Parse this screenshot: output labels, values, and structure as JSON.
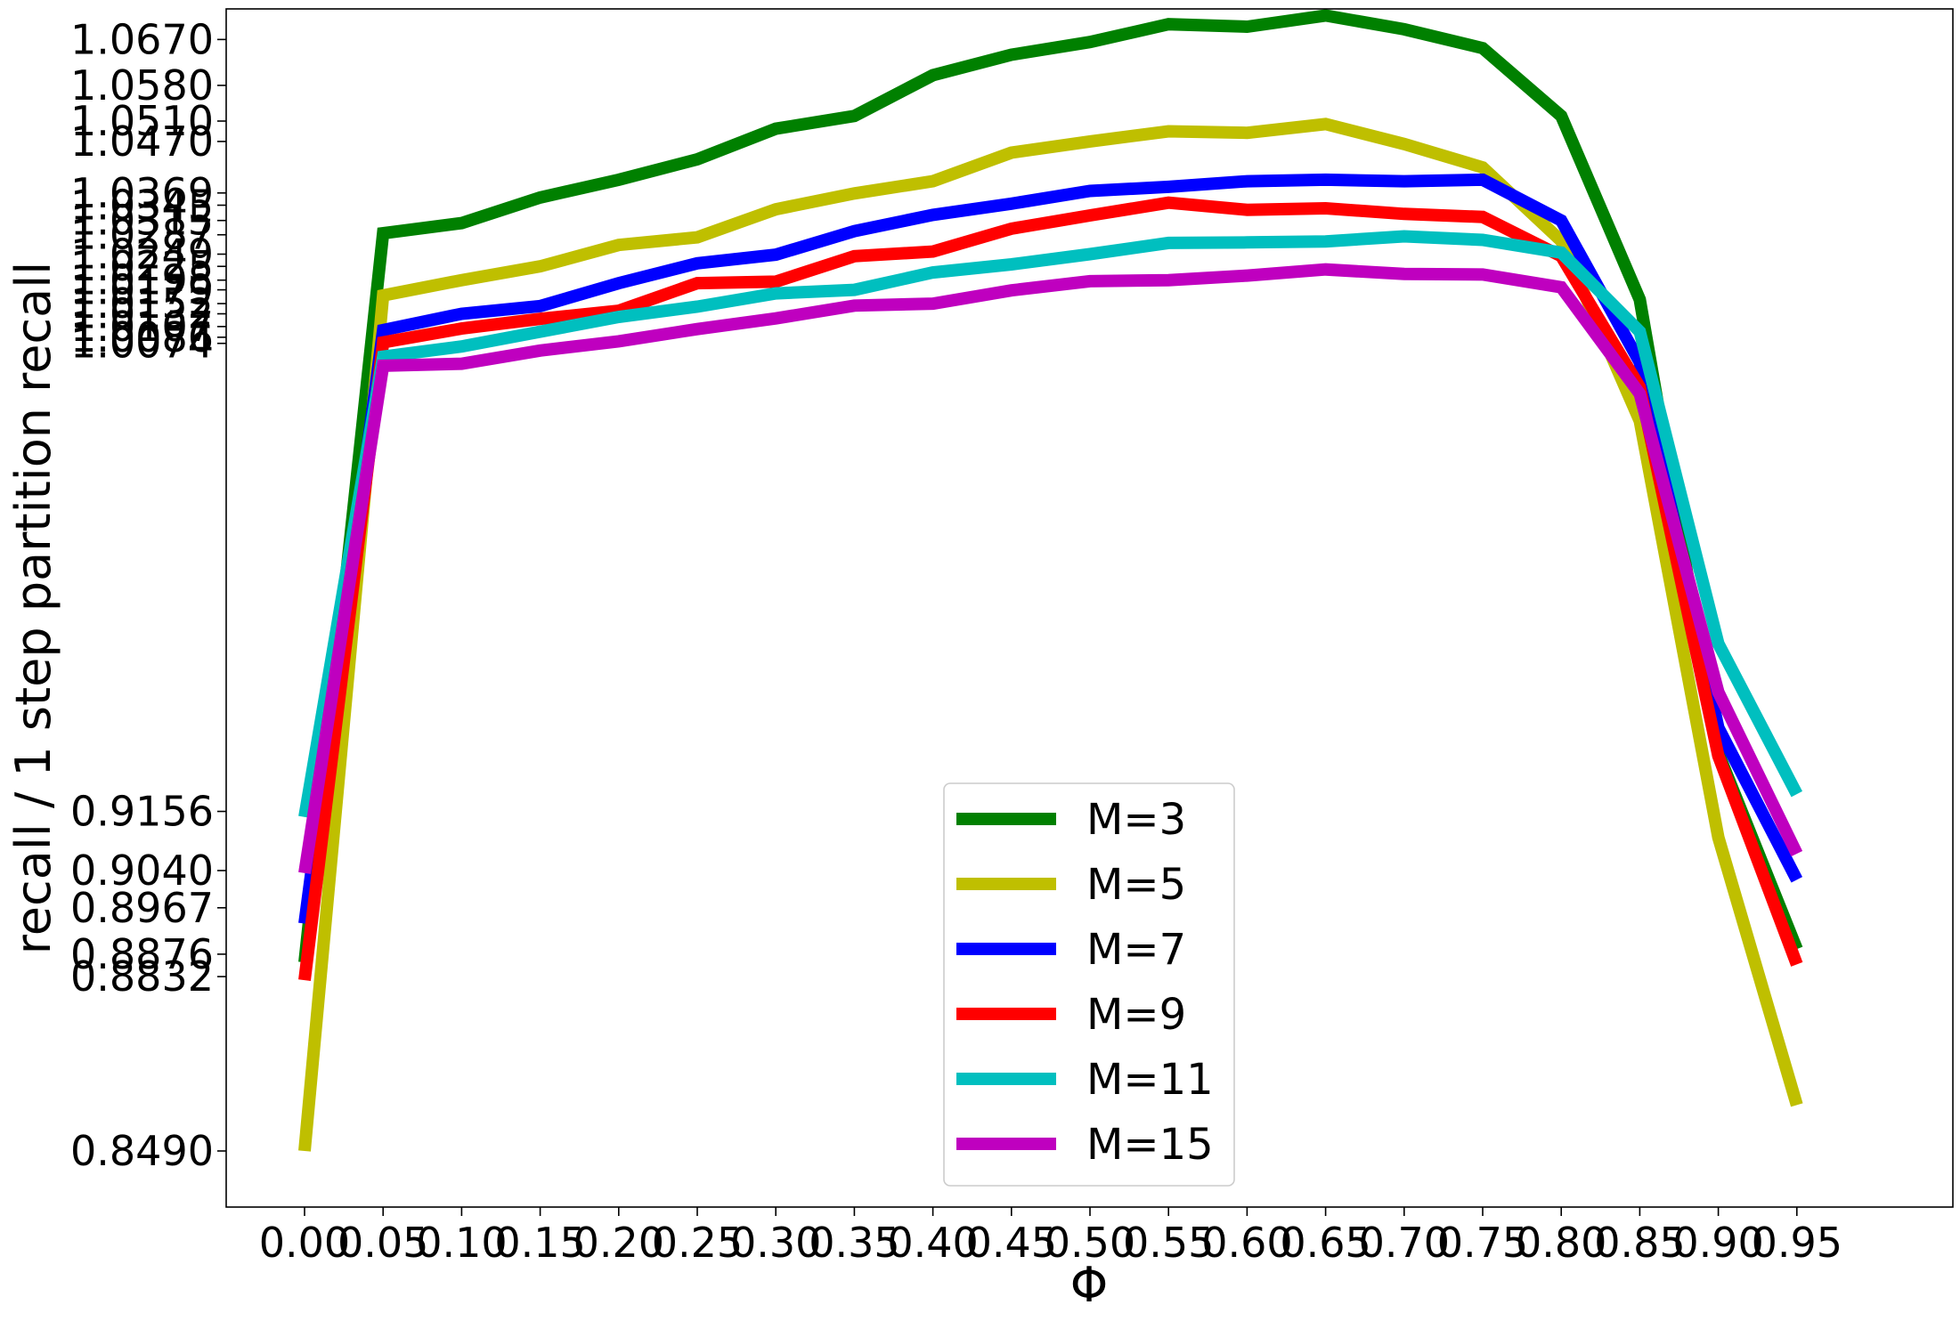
{
  "chart_data": {
    "type": "line",
    "title": "",
    "xlabel": "Φ",
    "ylabel": "recall / 1 step partition recall",
    "x": [
      0.0,
      0.05,
      0.1,
      0.15,
      0.2,
      0.25,
      0.3,
      0.35,
      0.4,
      0.45,
      0.5,
      0.55,
      0.6,
      0.65,
      0.7,
      0.75,
      0.8,
      0.85,
      0.9,
      0.95
    ],
    "x_tick_labels": [
      "0.00",
      "0.05",
      "0.10",
      "0.15",
      "0.20",
      "0.25",
      "0.30",
      "0.35",
      "0.40",
      "0.45",
      "0.50",
      "0.55",
      "0.60",
      "0.65",
      "0.70",
      "0.75",
      "0.80",
      "0.85",
      "0.90",
      "0.95"
    ],
    "ylim": [
      0.838,
      1.073
    ],
    "y_ticks": [
      0.849,
      0.8832,
      0.8876,
      0.8967,
      0.904,
      0.9156,
      1.0074,
      1.0086,
      1.0107,
      1.0132,
      1.0152,
      1.0179,
      1.0198,
      1.0225,
      1.0249,
      1.0287,
      1.0315,
      1.0345,
      1.0369,
      1.047,
      1.051,
      1.058,
      1.067
    ],
    "y_tick_labels": [
      "0.8490",
      "0.8832",
      "0.8876",
      "0.8967",
      "0.9040",
      "0.9156",
      "1.0074",
      "1.0086",
      "1.0107",
      "1.0132",
      "1.0152",
      "1.0179",
      "1.0198",
      "1.0225",
      "1.0249",
      "1.0287",
      "1.0315",
      "1.0345",
      "1.0369",
      "1.0470",
      "1.0510",
      "1.0580",
      "1.0670"
    ],
    "grid": false,
    "legend_position": "bottom-center",
    "series": [
      {
        "name": "M=3",
        "color": "#008000",
        "values": [
          0.886,
          1.029,
          1.031,
          1.036,
          1.0395,
          1.0435,
          1.0495,
          1.052,
          1.06,
          1.064,
          1.0665,
          1.07,
          1.0695,
          1.0717,
          1.069,
          1.0653,
          1.052,
          1.016,
          0.927,
          0.8886
        ]
      },
      {
        "name": "M=5",
        "color": "#bfbf00",
        "values": [
          0.849,
          1.0168,
          1.0198,
          1.0225,
          1.0267,
          1.0282,
          1.0337,
          1.0368,
          1.0392,
          1.0448,
          1.047,
          1.049,
          1.0487,
          1.0504,
          1.0465,
          1.0419,
          1.0275,
          0.9922,
          0.9105,
          0.858
        ]
      },
      {
        "name": "M=7",
        "color": "#0000ff",
        "values": [
          0.8936,
          1.01,
          1.0132,
          1.0147,
          1.0192,
          1.0231,
          1.0248,
          1.0294,
          1.0326,
          1.0348,
          1.0373,
          1.0381,
          1.0392,
          1.0395,
          1.0392,
          1.0395,
          1.0315,
          1.0037,
          0.932,
          0.9022
        ]
      },
      {
        "name": "M=9",
        "color": "#ff0000",
        "values": [
          0.8825,
          1.0076,
          1.0103,
          1.0122,
          1.0138,
          1.0192,
          1.0195,
          1.0245,
          1.0254,
          1.0299,
          1.0325,
          1.035,
          1.0336,
          1.0339,
          1.0328,
          1.0322,
          1.0245,
          0.9988,
          0.9265,
          0.8856
        ]
      },
      {
        "name": "M=11",
        "color": "#00bfbf",
        "values": [
          0.9145,
          1.0048,
          1.0068,
          1.0097,
          1.0126,
          1.0146,
          1.0172,
          1.0179,
          1.0213,
          1.0229,
          1.0249,
          1.0271,
          1.0272,
          1.0274,
          1.0284,
          1.0277,
          1.0252,
          1.0097,
          0.9485,
          0.919
        ]
      },
      {
        "name": "M=15",
        "color": "#bf00bf",
        "values": [
          0.9035,
          1.003,
          1.0034,
          1.006,
          1.0078,
          1.0102,
          1.0123,
          1.0148,
          1.0152,
          1.0178,
          1.0196,
          1.0198,
          1.0207,
          1.0219,
          1.021,
          1.0209,
          1.0184,
          0.9975,
          0.939,
          0.9073
        ]
      }
    ]
  }
}
